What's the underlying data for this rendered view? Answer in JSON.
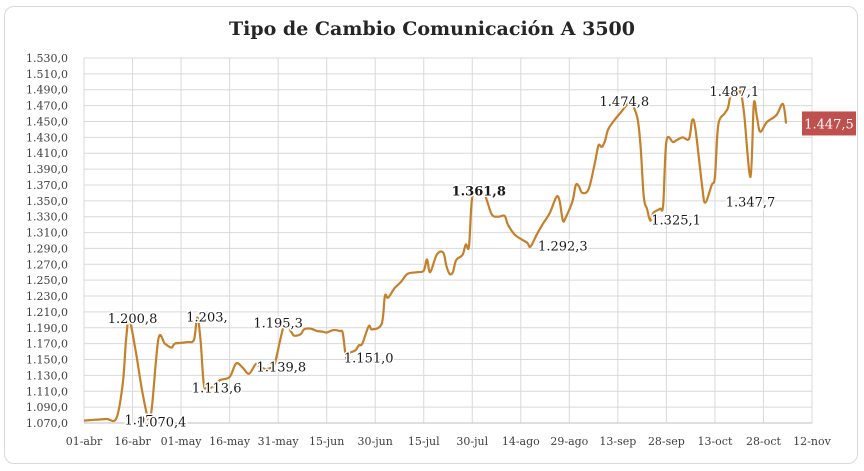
{
  "chart_data": {
    "type": "line",
    "title": "Tipo de Cambio Comunicación A 3500",
    "xlabel": "",
    "ylabel": "",
    "ylim": [
      1070,
      1530
    ],
    "y_ticks": [
      "1.070,0",
      "1.090,0",
      "1.110,0",
      "1.130,0",
      "1.150,0",
      "1.170,0",
      "1.190,0",
      "1.210,0",
      "1.230,0",
      "1.250,0",
      "1.270,0",
      "1.290,0",
      "1.310,0",
      "1.330,0",
      "1.350,0",
      "1.370,0",
      "1.390,0",
      "1.410,0",
      "1.430,0",
      "1.450,0",
      "1.470,0",
      "1.490,0",
      "1.510,0",
      "1.530,0"
    ],
    "x_ticks": [
      "01-abr",
      "16-abr",
      "01-may",
      "16-may",
      "31-may",
      "15-jun",
      "30-jun",
      "15-jul",
      "30-jul",
      "14-ago",
      "29-ago",
      "13-sep",
      "28-sep",
      "13-oct",
      "28-oct",
      "12-nov"
    ],
    "x_ticks_dates": [
      "2024-04-01",
      "2024-04-16",
      "2024-05-01",
      "2024-05-16",
      "2024-05-31",
      "2024-06-15",
      "2024-06-30",
      "2024-07-15",
      "2024-07-30",
      "2024-08-14",
      "2024-08-29",
      "2024-09-13",
      "2024-09-28",
      "2024-10-13",
      "2024-10-28",
      "2024-11-12"
    ],
    "grid": true,
    "line_color": "#c5802b",
    "series": [
      {
        "name": "",
        "points": [
          [
            "2024-04-01",
            1073
          ],
          [
            "2024-04-04",
            1074
          ],
          [
            "2024-04-08",
            1075
          ],
          [
            "2024-04-11",
            1076
          ],
          [
            "2024-04-13",
            1120
          ],
          [
            "2024-04-14",
            1175
          ],
          [
            "2024-04-15",
            1200.8
          ],
          [
            "2024-04-17",
            1160
          ],
          [
            "2024-04-19",
            1110
          ],
          [
            "2024-04-21",
            1073
          ],
          [
            "2024-04-22",
            1090
          ],
          [
            "2024-04-24",
            1176
          ],
          [
            "2024-04-26",
            1170
          ],
          [
            "2024-04-28",
            1165
          ],
          [
            "2024-04-29",
            1170
          ],
          [
            "2024-05-01",
            1171
          ],
          [
            "2024-05-03",
            1172
          ],
          [
            "2024-05-05",
            1175
          ],
          [
            "2024-05-06",
            1203
          ],
          [
            "2024-05-07",
            1175
          ],
          [
            "2024-05-08",
            1120
          ],
          [
            "2024-05-09",
            1114
          ],
          [
            "2024-05-11",
            1116
          ],
          [
            "2024-05-13",
            1124
          ],
          [
            "2024-05-16",
            1128
          ],
          [
            "2024-05-18",
            1145
          ],
          [
            "2024-05-20",
            1140
          ],
          [
            "2024-05-22",
            1132
          ],
          [
            "2024-05-24",
            1144
          ],
          [
            "2024-05-25",
            1142
          ],
          [
            "2024-05-27",
            1138
          ],
          [
            "2024-05-29",
            1140
          ],
          [
            "2024-05-30",
            1145
          ],
          [
            "2024-06-02",
            1195.3
          ],
          [
            "2024-06-04",
            1185
          ],
          [
            "2024-06-05",
            1180
          ],
          [
            "2024-06-07",
            1182
          ],
          [
            "2024-06-08",
            1188
          ],
          [
            "2024-06-10",
            1189
          ],
          [
            "2024-06-12",
            1186
          ],
          [
            "2024-06-14",
            1185
          ],
          [
            "2024-06-15",
            1184
          ],
          [
            "2024-06-17",
            1187
          ],
          [
            "2024-06-19",
            1186
          ],
          [
            "2024-06-20",
            1183
          ],
          [
            "2024-06-21",
            1152
          ],
          [
            "2024-06-22",
            1158
          ],
          [
            "2024-06-23",
            1160
          ],
          [
            "2024-06-24",
            1162
          ],
          [
            "2024-06-25",
            1168
          ],
          [
            "2024-06-26",
            1170
          ],
          [
            "2024-06-28",
            1192
          ],
          [
            "2024-06-29",
            1188
          ],
          [
            "2024-07-02",
            1195
          ],
          [
            "2024-07-03",
            1230
          ],
          [
            "2024-07-04",
            1228
          ],
          [
            "2024-07-06",
            1240
          ],
          [
            "2024-07-08",
            1248
          ],
          [
            "2024-07-10",
            1258
          ],
          [
            "2024-07-13",
            1260
          ],
          [
            "2024-07-15",
            1262
          ],
          [
            "2024-07-16",
            1276
          ],
          [
            "2024-07-17",
            1260
          ],
          [
            "2024-07-19",
            1282
          ],
          [
            "2024-07-21",
            1285
          ],
          [
            "2024-07-22",
            1268
          ],
          [
            "2024-07-23",
            1258
          ],
          [
            "2024-07-24",
            1260
          ],
          [
            "2024-07-25",
            1275
          ],
          [
            "2024-07-27",
            1282
          ],
          [
            "2024-07-28",
            1295
          ],
          [
            "2024-07-29",
            1293
          ],
          [
            "2024-07-30",
            1355
          ],
          [
            "2024-08-01",
            1361.8
          ],
          [
            "2024-08-03",
            1356
          ],
          [
            "2024-08-05",
            1333
          ],
          [
            "2024-08-07",
            1330
          ],
          [
            "2024-08-09",
            1331
          ],
          [
            "2024-08-10",
            1320
          ],
          [
            "2024-08-12",
            1308
          ],
          [
            "2024-08-14",
            1302
          ],
          [
            "2024-08-16",
            1297
          ],
          [
            "2024-08-17",
            1292.3
          ],
          [
            "2024-08-19",
            1308
          ],
          [
            "2024-08-21",
            1322
          ],
          [
            "2024-08-23",
            1335
          ],
          [
            "2024-08-25",
            1355
          ],
          [
            "2024-08-26",
            1350
          ],
          [
            "2024-08-27",
            1325
          ],
          [
            "2024-08-28",
            1330
          ],
          [
            "2024-08-30",
            1350
          ],
          [
            "2024-08-31",
            1370
          ],
          [
            "2024-09-01",
            1368
          ],
          [
            "2024-09-02",
            1360
          ],
          [
            "2024-09-04",
            1365
          ],
          [
            "2024-09-06",
            1400
          ],
          [
            "2024-09-07",
            1420
          ],
          [
            "2024-09-08",
            1418
          ],
          [
            "2024-09-09",
            1425
          ],
          [
            "2024-09-10",
            1440
          ],
          [
            "2024-09-12",
            1452
          ],
          [
            "2024-09-14",
            1462
          ],
          [
            "2024-09-16",
            1472
          ],
          [
            "2024-09-17",
            1474.8
          ],
          [
            "2024-09-19",
            1455
          ],
          [
            "2024-09-20",
            1420
          ],
          [
            "2024-09-21",
            1355
          ],
          [
            "2024-09-22",
            1340
          ],
          [
            "2024-09-23",
            1325.1
          ],
          [
            "2024-09-24",
            1335
          ],
          [
            "2024-09-26",
            1340
          ],
          [
            "2024-09-27",
            1345
          ],
          [
            "2024-09-28",
            1425
          ],
          [
            "2024-09-30",
            1424
          ],
          [
            "2024-10-01",
            1426
          ],
          [
            "2024-10-03",
            1430
          ],
          [
            "2024-10-05",
            1428
          ],
          [
            "2024-10-06",
            1452
          ],
          [
            "2024-10-07",
            1440
          ],
          [
            "2024-10-09",
            1370
          ],
          [
            "2024-10-10",
            1347.7
          ],
          [
            "2024-10-12",
            1370
          ],
          [
            "2024-10-13",
            1380
          ],
          [
            "2024-10-14",
            1445
          ],
          [
            "2024-10-16",
            1460
          ],
          [
            "2024-10-17",
            1467
          ],
          [
            "2024-10-18",
            1484
          ],
          [
            "2024-10-20",
            1485
          ],
          [
            "2024-10-21",
            1487.1
          ],
          [
            "2024-10-22",
            1460
          ],
          [
            "2024-10-24",
            1380
          ],
          [
            "2024-10-25",
            1472
          ],
          [
            "2024-10-26",
            1455
          ],
          [
            "2024-10-27",
            1437
          ],
          [
            "2024-10-29",
            1449
          ],
          [
            "2024-11-01",
            1458
          ],
          [
            "2024-11-03",
            1472
          ],
          [
            "2024-11-04",
            1447.5
          ]
        ]
      }
    ],
    "data_labels": [
      {
        "text": "1.200,8",
        "x": "2024-04-16",
        "y": 1200.8
      },
      {
        "text": "1.07",
        "x": "2024-04-18",
        "y": 1073
      },
      {
        "text": "1.070,4",
        "x": "2024-04-25",
        "y": 1070.4
      },
      {
        "text": "1.203,",
        "x": "2024-05-09",
        "y": 1203
      },
      {
        "text": "1.113,6",
        "x": "2024-05-12",
        "y": 1113.6
      },
      {
        "text": "1.195,3",
        "x": "2024-05-31",
        "y": 1195.3
      },
      {
        "text": "1.139,8",
        "x": "2024-06-01",
        "y": 1139.8
      },
      {
        "text": "1.151,0",
        "x": "2024-06-28",
        "y": 1151.0
      },
      {
        "text": "1.361,8",
        "x": "2024-08-01",
        "y": 1361.8,
        "bold": true
      },
      {
        "text": "1.292,3",
        "x": "2024-08-27",
        "y": 1292.3
      },
      {
        "text": "1.474,8",
        "x": "2024-09-15",
        "y": 1474.8
      },
      {
        "text": "1.325,1",
        "x": "2024-10-01",
        "y": 1325.1
      },
      {
        "text": "1.487,1",
        "x": "2024-10-19",
        "y": 1487.1
      },
      {
        "text": "1.347,7",
        "x": "2024-10-24",
        "y": 1347.7
      }
    ],
    "last_value_label": "1.447,5"
  }
}
